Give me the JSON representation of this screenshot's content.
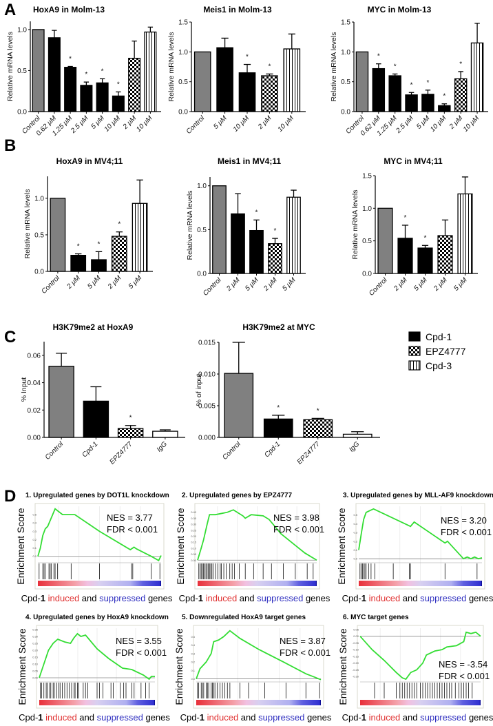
{
  "panel_labels": [
    "A",
    "B",
    "C",
    "D"
  ],
  "colors": {
    "control": "#808080",
    "cpd1": "#000000",
    "es_curve": "#33dd33",
    "induced": "#e03030",
    "suppressed": "#3030c0"
  },
  "chart_data": [
    {
      "id": "A1",
      "type": "bar",
      "title": "HoxA9 in Molm-13",
      "ylabel": "Relative mRNA levels",
      "ylim": [
        0,
        1.1
      ],
      "yticks": [
        "0.0",
        "0.5",
        "1.0"
      ],
      "ytick_values": [
        0,
        0.5,
        1.0
      ],
      "categories": [
        "Control",
        "0.62 μM",
        "1.25 μM",
        "2.5 μM",
        "5 μM",
        "10 μM",
        "2 μM",
        "10 μM"
      ],
      "values": [
        1.0,
        0.9,
        0.54,
        0.32,
        0.35,
        0.19,
        0.65,
        0.97
      ],
      "errors": [
        0,
        0.09,
        0.01,
        0.04,
        0.05,
        0.05,
        0.21,
        0.06
      ],
      "significant": [
        false,
        false,
        true,
        true,
        true,
        true,
        false,
        false
      ],
      "fills": [
        "control",
        "cpd1",
        "cpd1",
        "cpd1",
        "cpd1",
        "cpd1",
        "epz",
        "cpd3"
      ],
      "sig_label": "*"
    },
    {
      "id": "A2",
      "type": "bar",
      "title": "Meis1 in Molm-13",
      "ylabel": "Relative mRNA levels",
      "ylim": [
        0,
        1.5
      ],
      "yticks": [
        "0.0",
        "0.5",
        "1.0",
        "1.5"
      ],
      "ytick_values": [
        0,
        0.5,
        1.0,
        1.5
      ],
      "categories": [
        "Control",
        "5 μM",
        "10 μM",
        "2 μM",
        "10 μM"
      ],
      "values": [
        1.0,
        1.07,
        0.65,
        0.6,
        1.05
      ],
      "errors": [
        0,
        0.16,
        0.14,
        0.03,
        0.25
      ],
      "significant": [
        false,
        false,
        true,
        true,
        false
      ],
      "fills": [
        "control",
        "cpd1",
        "cpd1",
        "epz",
        "cpd3"
      ],
      "sig_label": "*"
    },
    {
      "id": "A3",
      "type": "bar",
      "title": "MYC in Molm-13",
      "ylabel": "Relative mRNA levels",
      "ylim": [
        0,
        1.5
      ],
      "yticks": [
        "0.0",
        "0.5",
        "1.0",
        "1.5"
      ],
      "ytick_values": [
        0,
        0.5,
        1.0,
        1.5
      ],
      "categories": [
        "Control",
        "0.62 μM",
        "1.25 μM",
        "2.5 μM",
        "5 μM",
        "10 μM",
        "2 μM",
        "10 μM"
      ],
      "values": [
        1.0,
        0.72,
        0.6,
        0.28,
        0.29,
        0.1,
        0.55,
        1.15
      ],
      "errors": [
        0,
        0.08,
        0.03,
        0.04,
        0.07,
        0.03,
        0.12,
        0.33
      ],
      "significant": [
        false,
        true,
        true,
        true,
        true,
        true,
        true,
        false
      ],
      "fills": [
        "control",
        "cpd1",
        "cpd1",
        "cpd1",
        "cpd1",
        "cpd1",
        "epz",
        "cpd3"
      ],
      "sig_label": "*"
    },
    {
      "id": "B1",
      "type": "bar",
      "title": "HoxA9 in MV4;11",
      "ylabel": "Relative mRNA levels",
      "ylim": [
        0,
        1.3
      ],
      "yticks": [
        "0.0",
        "0.5",
        "1.0"
      ],
      "ytick_values": [
        0,
        0.5,
        1.0
      ],
      "categories": [
        "Control",
        "2 μM",
        "5 μM",
        "2 μM",
        "5 μM"
      ],
      "values": [
        1.0,
        0.22,
        0.16,
        0.48,
        0.93
      ],
      "errors": [
        0,
        0.02,
        0.11,
        0.06,
        0.32
      ],
      "significant": [
        false,
        true,
        true,
        true,
        false
      ],
      "fills": [
        "control",
        "cpd1",
        "cpd1",
        "epz",
        "cpd3"
      ],
      "sig_label": "*"
    },
    {
      "id": "B2",
      "type": "bar",
      "title": "Meis1 in MV4;11",
      "ylabel": "Relative mRNA levels",
      "ylim": [
        0,
        1.1
      ],
      "yticks": [
        "0.0",
        "0.5",
        "1.0"
      ],
      "ytick_values": [
        0,
        0.5,
        1.0
      ],
      "categories": [
        "Control",
        "2 μM",
        "5 μM",
        "2 μM",
        "5 μM"
      ],
      "values": [
        1.0,
        0.68,
        0.49,
        0.34,
        0.87
      ],
      "errors": [
        0,
        0.23,
        0.12,
        0.06,
        0.08
      ],
      "significant": [
        false,
        false,
        true,
        true,
        false
      ],
      "fills": [
        "control",
        "cpd1",
        "cpd1",
        "epz",
        "cpd3"
      ],
      "sig_label": "*"
    },
    {
      "id": "B3",
      "type": "bar",
      "title": "MYC in MV4;11",
      "ylabel": "Relative mRNA levels",
      "ylim": [
        0,
        1.5
      ],
      "yticks": [
        "0.0",
        "0.5",
        "1.0",
        "1.5"
      ],
      "ytick_values": [
        0,
        0.5,
        1.0,
        1.5
      ],
      "categories": [
        "Control",
        "2 μM",
        "5 μM",
        "2 μM",
        "5 μM"
      ],
      "values": [
        1.0,
        0.54,
        0.39,
        0.58,
        1.22
      ],
      "errors": [
        0,
        0.2,
        0.04,
        0.24,
        0.26
      ],
      "significant": [
        false,
        true,
        true,
        false,
        false
      ],
      "fills": [
        "control",
        "cpd1",
        "cpd1",
        "epz",
        "cpd3"
      ],
      "sig_label": "*"
    },
    {
      "id": "C1",
      "type": "bar",
      "title": "H3K79me2 at HoxA9",
      "ylabel": "% Input",
      "ylim": [
        0,
        0.07
      ],
      "yticks": [
        "0.00",
        "0.02",
        "0.04",
        "0.06"
      ],
      "ytick_values": [
        0,
        0.02,
        0.04,
        0.06
      ],
      "categories": [
        "Control",
        "Cpd-1",
        "EPZ4777",
        "IgG"
      ],
      "values": [
        0.052,
        0.0265,
        0.0065,
        0.0045
      ],
      "errors": [
        0.0095,
        0.0105,
        0.0022,
        0.001
      ],
      "significant": [
        false,
        false,
        true,
        false
      ],
      "fills": [
        "control",
        "cpd1",
        "epz",
        "igg"
      ],
      "sig_label": "*"
    },
    {
      "id": "C2",
      "type": "bar",
      "title": "H3K79me2 at MYC",
      "ylabel": "% of input",
      "ylim": [
        0,
        0.015
      ],
      "yticks": [
        "0.000",
        "0.005",
        "0.010",
        "0.015"
      ],
      "ytick_values": [
        0,
        0.005,
        0.01,
        0.015
      ],
      "categories": [
        "Control",
        "Cpd-1",
        "EPZ4777",
        "IgG"
      ],
      "values": [
        0.0101,
        0.0029,
        0.0028,
        0.0005
      ],
      "errors": [
        0.0049,
        0.0006,
        0.0002,
        0.0004
      ],
      "significant": [
        false,
        true,
        true,
        false
      ],
      "fills": [
        "control",
        "cpd1",
        "epz",
        "igg"
      ],
      "sig_label": "*"
    }
  ],
  "legend": [
    {
      "label": "Cpd-1",
      "fill": "cpd1"
    },
    {
      "label": "EPZ4777",
      "fill": "epz"
    },
    {
      "label": "Cpd-3",
      "fill": "cpd3"
    }
  ],
  "gsea": {
    "ylabel": "Enrichment Score",
    "caption": {
      "prefix": "Cpd-",
      "bold": "1",
      "induced": " induced",
      "and": " and ",
      "suppressed": "suppressed",
      "suffix": " genes"
    },
    "panels": [
      {
        "title": "1. Upregulated genes by DOT1L knockdown",
        "nes": "NES = 3.77",
        "fdr": "FDR < 0.001",
        "ylim": [
          -0.06,
          0.6
        ],
        "yticks": [
          "0.0",
          "0.1",
          "0.2",
          "0.3",
          "0.4",
          "0.5"
        ],
        "ytick_values": [
          0,
          0.1,
          0.2,
          0.3,
          0.4,
          0.5
        ],
        "curve": [
          [
            0,
            0
          ],
          [
            0.02,
            0.1
          ],
          [
            0.04,
            0.25
          ],
          [
            0.06,
            0.33
          ],
          [
            0.08,
            0.36
          ],
          [
            0.1,
            0.43
          ],
          [
            0.12,
            0.5
          ],
          [
            0.14,
            0.57
          ],
          [
            0.2,
            0.5
          ],
          [
            0.3,
            0.5
          ],
          [
            0.5,
            0.3
          ],
          [
            0.75,
            0.08
          ],
          [
            0.78,
            0.11
          ],
          [
            0.8,
            0.09
          ],
          [
            0.92,
            0.0
          ],
          [
            0.98,
            -0.05
          ],
          [
            1,
            0.01
          ]
        ],
        "hits": [
          0.01,
          0.04,
          0.05,
          0.06,
          0.09,
          0.1,
          0.11,
          0.13,
          0.14,
          0.16,
          0.27,
          0.5,
          0.76,
          0.77,
          0.92,
          0.99
        ]
      },
      {
        "title": "2. Upregulated genes by EPZ4777",
        "nes": "NES = 3.98",
        "fdr": "FDR < 0.001",
        "ylim": [
          -0.01,
          0.45
        ],
        "yticks": [
          "0.00",
          "0.05",
          "0.10",
          "0.15",
          "0.20",
          "0.25",
          "0.30",
          "0.35",
          "0.40"
        ],
        "ytick_values": [
          0,
          0.05,
          0.1,
          0.15,
          0.2,
          0.25,
          0.3,
          0.35,
          0.4
        ],
        "curve": [
          [
            0,
            0
          ],
          [
            0.03,
            0.1
          ],
          [
            0.05,
            0.17
          ],
          [
            0.08,
            0.3
          ],
          [
            0.1,
            0.38
          ],
          [
            0.15,
            0.38
          ],
          [
            0.2,
            0.39
          ],
          [
            0.25,
            0.4
          ],
          [
            0.3,
            0.42
          ],
          [
            0.38,
            0.37
          ],
          [
            0.4,
            0.35
          ],
          [
            0.45,
            0.38
          ],
          [
            0.55,
            0.37
          ],
          [
            0.6,
            0.34
          ],
          [
            0.7,
            0.22
          ],
          [
            0.8,
            0.14
          ],
          [
            0.9,
            0.06
          ],
          [
            1,
            0
          ]
        ],
        "hits": [
          0.01,
          0.02,
          0.03,
          0.04,
          0.05,
          0.06,
          0.07,
          0.08,
          0.09,
          0.1,
          0.11,
          0.12,
          0.13,
          0.15,
          0.17,
          0.19,
          0.2,
          0.22,
          0.24,
          0.27,
          0.29,
          0.31,
          0.35,
          0.4,
          0.47,
          0.55,
          0.62,
          0.72,
          0.82,
          0.92,
          0.97
        ]
      },
      {
        "title": "3. Upregulated genes by MLL-AF9 knockdown",
        "nes": "NES = 3.20",
        "fdr": "FDR < 0.001",
        "ylim": [
          -0.03,
          0.6
        ],
        "yticks": [
          "0.0",
          "0.1",
          "0.2",
          "0.3",
          "0.4",
          "0.5"
        ],
        "ytick_values": [
          0,
          0.1,
          0.2,
          0.3,
          0.4,
          0.5
        ],
        "curve": [
          [
            0,
            0.1
          ],
          [
            0.02,
            0.28
          ],
          [
            0.04,
            0.45
          ],
          [
            0.06,
            0.53
          ],
          [
            0.09,
            0.55
          ],
          [
            0.12,
            0.57
          ],
          [
            0.3,
            0.45
          ],
          [
            0.42,
            0.37
          ],
          [
            0.45,
            0.42
          ],
          [
            0.7,
            0.18
          ],
          [
            0.72,
            0.2
          ],
          [
            0.85,
            0
          ],
          [
            0.88,
            0.02
          ],
          [
            0.91,
            0
          ],
          [
            0.94,
            0.02
          ],
          [
            0.97,
            0
          ],
          [
            1,
            0.01
          ]
        ],
        "hits": [
          0.01,
          0.02,
          0.03,
          0.04,
          0.05,
          0.06,
          0.08,
          0.1,
          0.13,
          0.28,
          0.41,
          0.42,
          0.7,
          0.96
        ]
      },
      {
        "title": "4. Upregulated genes by HoxA9 knockdown",
        "nes": "NES = 3.55",
        "fdr": "FDR < 0.001",
        "ylim": [
          -0.02,
          0.36
        ],
        "yticks": [
          "0.00",
          "0.05",
          "0.10",
          "0.15",
          "0.20",
          "0.25",
          "0.30",
          "0.35"
        ],
        "ytick_values": [
          0,
          0.05,
          0.1,
          0.15,
          0.2,
          0.25,
          0.3,
          0.35
        ],
        "curve": [
          [
            0,
            0
          ],
          [
            0.04,
            0.1
          ],
          [
            0.08,
            0.2
          ],
          [
            0.12,
            0.25
          ],
          [
            0.16,
            0.28
          ],
          [
            0.22,
            0.26
          ],
          [
            0.27,
            0.25
          ],
          [
            0.3,
            0.29
          ],
          [
            0.33,
            0.32
          ],
          [
            0.36,
            0.3
          ],
          [
            0.4,
            0.31
          ],
          [
            0.5,
            0.21
          ],
          [
            0.6,
            0.14
          ],
          [
            0.72,
            0.07
          ],
          [
            0.8,
            0.06
          ],
          [
            0.9,
            0.02
          ],
          [
            0.95,
            -0.01
          ],
          [
            0.97,
            0.01
          ],
          [
            1,
            0.01
          ]
        ],
        "hits": [
          0.01,
          0.02,
          0.04,
          0.06,
          0.07,
          0.09,
          0.1,
          0.12,
          0.13,
          0.15,
          0.17,
          0.18,
          0.2,
          0.22,
          0.24,
          0.26,
          0.28,
          0.3,
          0.31,
          0.33,
          0.34,
          0.38,
          0.4,
          0.42,
          0.5,
          0.52,
          0.55,
          0.62,
          0.64,
          0.7,
          0.73,
          0.75,
          0.8,
          0.82,
          0.88,
          0.92,
          0.95
        ]
      },
      {
        "title": "5. Downregulated HoxA9 target genes",
        "nes": "NES = 3.87",
        "fdr": "FDR < 0.001",
        "ylim": [
          -0.02,
          0.6
        ],
        "yticks": [
          "0.0",
          "0.1",
          "0.2",
          "0.3",
          "0.4",
          "0.5"
        ],
        "ytick_values": [
          0,
          0.1,
          0.2,
          0.3,
          0.4,
          0.5
        ],
        "curve": [
          [
            0,
            0
          ],
          [
            0.03,
            0.12
          ],
          [
            0.08,
            0.2
          ],
          [
            0.12,
            0.3
          ],
          [
            0.14,
            0.44
          ],
          [
            0.18,
            0.46
          ],
          [
            0.22,
            0.5
          ],
          [
            0.27,
            0.57
          ],
          [
            0.35,
            0.48
          ],
          [
            0.5,
            0.35
          ],
          [
            0.7,
            0.2
          ],
          [
            0.88,
            0.06
          ],
          [
            0.95,
            0.02
          ],
          [
            1,
            -0.01
          ]
        ],
        "hits": [
          0.01,
          0.02,
          0.04,
          0.05,
          0.06,
          0.08,
          0.09,
          0.1,
          0.12,
          0.13,
          0.14,
          0.15,
          0.17,
          0.19,
          0.21,
          0.23,
          0.25,
          0.27,
          0.35,
          0.42,
          0.55,
          0.72,
          0.88,
          0.99
        ]
      },
      {
        "title": "6. MYC target genes",
        "nes": "NES = -3.54",
        "fdr": "FDR < 0.001",
        "ylim": [
          -0.33,
          0.06
        ],
        "yticks": [
          "0.05",
          "0.00",
          "-0.05",
          "-0.10",
          "-0.15",
          "-0.20",
          "-0.25",
          "-0.30"
        ],
        "ytick_values": [
          0.05,
          0,
          -0.05,
          -0.1,
          -0.15,
          -0.2,
          -0.25,
          -0.3
        ],
        "curve": [
          [
            0,
            0
          ],
          [
            0.05,
            -0.05
          ],
          [
            0.1,
            -0.1
          ],
          [
            0.2,
            -0.18
          ],
          [
            0.3,
            -0.27
          ],
          [
            0.35,
            -0.31
          ],
          [
            0.38,
            -0.32
          ],
          [
            0.42,
            -0.27
          ],
          [
            0.47,
            -0.25
          ],
          [
            0.52,
            -0.2
          ],
          [
            0.55,
            -0.14
          ],
          [
            0.62,
            -0.11
          ],
          [
            0.68,
            -0.1
          ],
          [
            0.72,
            -0.08
          ],
          [
            0.8,
            -0.07
          ],
          [
            0.86,
            -0.04
          ],
          [
            0.88,
            0.03
          ],
          [
            0.92,
            0.02
          ],
          [
            0.96,
            0.03
          ],
          [
            1,
            0
          ]
        ],
        "hits": [
          0.12,
          0.2,
          0.3,
          0.33,
          0.35,
          0.37,
          0.39,
          0.41,
          0.43,
          0.45,
          0.47,
          0.5,
          0.52,
          0.54,
          0.56,
          0.58,
          0.6,
          0.62,
          0.64,
          0.66,
          0.68,
          0.7,
          0.72,
          0.74,
          0.76,
          0.79,
          0.82,
          0.84,
          0.86,
          0.88,
          0.9,
          0.93
        ]
      }
    ]
  }
}
